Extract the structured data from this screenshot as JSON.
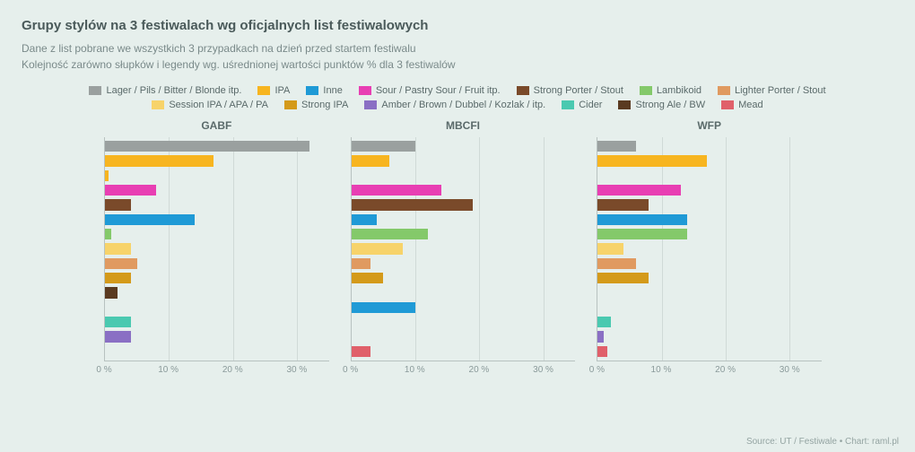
{
  "title": "Grupy stylów na 3 festiwalach wg oficjalnych list festiwalowych",
  "subtitle_line1": "Dane z list pobrane we wszystkich 3 przypadkach na dzień przed startem festiwalu",
  "subtitle_line2": "Kolejność zarówno słupków i legendy wg. uśrednionej wartości punktów % dla 3 festiwalów",
  "footer": "Source: UT / Festiwale • Chart: raml.pl",
  "legend": [
    {
      "label": "Lager / Pils / Bitter / Blonde itp.",
      "color": "#9aa09f"
    },
    {
      "label": "IPA",
      "color": "#f7b520"
    },
    {
      "label": "Inne",
      "color": "#1f9ad6"
    },
    {
      "label": "Sour / Pastry Sour / Fruit itp.",
      "color": "#e83fb3"
    },
    {
      "label": "Strong Porter / Stout",
      "color": "#7a4a2a"
    },
    {
      "label": "Lambikoid",
      "color": "#84c96a"
    },
    {
      "label": "Lighter Porter / Stout",
      "color": "#e09a60"
    },
    {
      "label": "Session IPA / APA / PA",
      "color": "#f7d36a"
    },
    {
      "label": "Strong IPA",
      "color": "#d49a1a"
    },
    {
      "label": "Amber / Brown / Dubbel / Kozlak / itp.",
      "color": "#8a6fc4"
    },
    {
      "label": "Cider",
      "color": "#4ac9b0"
    },
    {
      "label": "Strong Ale / BW",
      "color": "#5a3a20"
    },
    {
      "label": "Mead",
      "color": "#e0606a"
    }
  ],
  "xaxis": {
    "min": 0,
    "max": 35,
    "ticks": [
      0,
      10,
      20,
      30
    ],
    "tick_labels": [
      "0 %",
      "10 %",
      "20 %",
      "30 %"
    ]
  },
  "chart_bg": "#e6efec",
  "grid_color": "#d0dad7",
  "axis_color": "#b8c2c0",
  "panels": [
    {
      "title": "GABF",
      "values": [
        32,
        17,
        0.5,
        8,
        4,
        14,
        1,
        4,
        5,
        4,
        2,
        0,
        4,
        4,
        0
      ]
    },
    {
      "title": "MBCFI",
      "values": [
        10,
        6,
        0,
        14,
        19,
        4,
        12,
        8,
        3,
        5,
        0,
        10,
        0,
        0,
        3
      ]
    },
    {
      "title": "WFP",
      "values": [
        6,
        17,
        0,
        13,
        8,
        14,
        14,
        4,
        6,
        8,
        0,
        0,
        2,
        1,
        1.5
      ]
    }
  ],
  "series_colors": [
    "#9aa09f",
    "#f7b520",
    "#f7b520",
    "#e83fb3",
    "#7a4a2a",
    "#1f9ad6",
    "#84c96a",
    "#f7d36a",
    "#e09a60",
    "#d49a1a",
    "#5a3a20",
    "#1f9ad6",
    "#4ac9b0",
    "#8a6fc4",
    "#e0606a"
  ]
}
